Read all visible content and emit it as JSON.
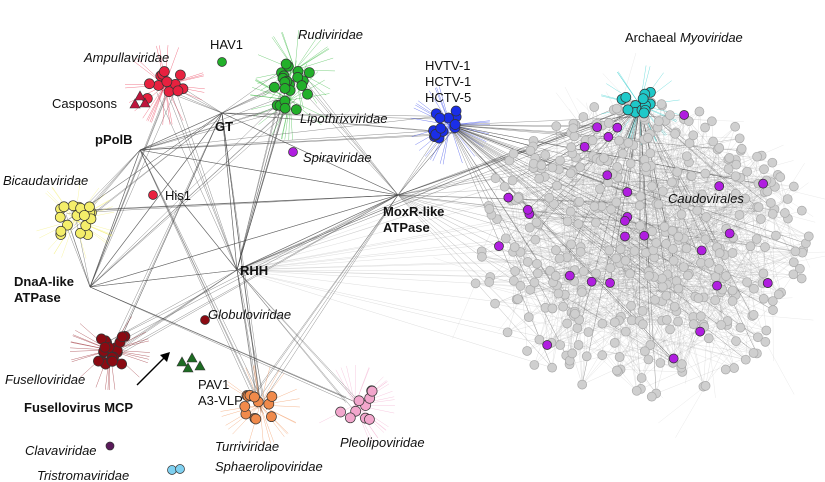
{
  "labels": {
    "ampullaviridae": "Ampullaviridae",
    "hav1": "HAV1",
    "rudiviridae": "Rudiviridae",
    "casposons": "Casposons",
    "ppolb": "pPolB",
    "gt": "GT",
    "lipothrixviridae": "Lipothrixviridae",
    "spiraviridae": "Spiraviridae",
    "his1": "His1",
    "bicaudaviridae": "Bicaudaviridae",
    "dnaa_atpase": [
      "DnaA-like",
      "ATPase"
    ],
    "rhh": "RHH",
    "moxr_atpase": [
      "MoxR-like",
      "ATPase"
    ],
    "globuloviridae": "Globuloviridae",
    "fuselloviridae": "Fuselloviridae",
    "pav1": "PAV1",
    "a3_vlp": "A3-VLP",
    "fusellovirus_mcp": "Fusellovirus MCP",
    "turriviridae": "Turriviridae",
    "sphaerolipoviridae": "Sphaerolipoviridae",
    "pleolipoviridae": "Pleolipoviridae",
    "clavaviridae": "Clavaviridae",
    "tristromaviridae": "Tristromaviridae",
    "haloviruses": [
      "HVTV-1",
      "HCTV-1",
      "HCTV-5"
    ],
    "archaeal_myoviridae": [
      "Archaeal",
      "Myoviridae"
    ],
    "caudovirales": "Caudovirales"
  }
}
